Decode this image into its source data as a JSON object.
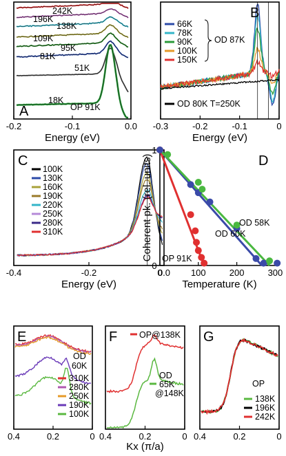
{
  "chart_data": [
    {
      "id": "A",
      "type": "line",
      "letter": "A",
      "xlabel": "Energy (eV)",
      "xlim": [
        -0.2,
        0.0
      ],
      "xticks": [
        "-0.2",
        "-0.1",
        "0.0"
      ],
      "annotation": "OP 91K",
      "series": [
        {
          "name": "242K",
          "color": "#d62728",
          "offset": 0.95,
          "peak": 0.03
        },
        {
          "name": "196K",
          "color": "#b05fb0",
          "offset": 0.87,
          "peak": 0.04
        },
        {
          "name": "138K",
          "color": "#33b5c8",
          "offset": 0.79,
          "peak": 0.05
        },
        {
          "name": "109K",
          "color": "#a8a23a",
          "offset": 0.7,
          "peak": 0.07
        },
        {
          "name": "95K",
          "color": "#2a8a2a",
          "offset": 0.62,
          "peak": 0.08
        },
        {
          "name": "81K",
          "color": "#2b4aa8",
          "offset": 0.53,
          "peak": 0.1
        },
        {
          "name": "51K",
          "color": "#555555",
          "offset": 0.37,
          "peak": 0.22
        },
        {
          "name": "18K",
          "color": "#2a9a3a",
          "offset": 0.12,
          "peak": 0.5
        }
      ]
    },
    {
      "id": "B",
      "type": "line",
      "letter": "B",
      "xlabel": "Energy (eV)",
      "xlim": [
        -0.3,
        0.03
      ],
      "xticks": [
        "-0.3",
        "-0.2",
        "-0.1",
        "0"
      ],
      "group_label": "OD 87K",
      "extra_label": "OD 80K T=250K",
      "series": [
        {
          "name": "66K",
          "color": "#2b4aa8"
        },
        {
          "name": "78K",
          "color": "#33b5c8"
        },
        {
          "name": "90K",
          "color": "#2a9a3a"
        },
        {
          "name": "100K",
          "color": "#e69a28"
        },
        {
          "name": "150K",
          "color": "#e03030"
        },
        {
          "name": "OD 80K T=250K",
          "color": "#000000"
        }
      ]
    },
    {
      "id": "C",
      "type": "line",
      "letter": "C",
      "xlabel": "Energy (eV)",
      "xlim": [
        -0.4,
        0.05
      ],
      "xticks": [
        "-0.4",
        "-0.2",
        "0.0"
      ],
      "series": [
        {
          "name": "100K",
          "color": "#000000",
          "peak": 1.0
        },
        {
          "name": "130K",
          "color": "#2b4aa8",
          "peak": 0.9
        },
        {
          "name": "160K",
          "color": "#a8a23a",
          "peak": 0.76
        },
        {
          "name": "190K",
          "color": "#9a7a28",
          "peak": 0.66
        },
        {
          "name": "220K",
          "color": "#33b5c8",
          "peak": 0.5
        },
        {
          "name": "250K",
          "color": "#b58ad8",
          "peak": 0.42
        },
        {
          "name": "280K",
          "color": "#3a2a88",
          "peak": 0.4
        },
        {
          "name": "310K",
          "color": "#e03030",
          "peak": 0.38
        }
      ]
    },
    {
      "id": "D",
      "type": "scatter",
      "letter": "D",
      "xlabel": "Temperature (K)",
      "ylabel": "Coherent pk. (rel. units)",
      "xlim": [
        0,
        310
      ],
      "ylim": [
        0,
        1
      ],
      "xticks": [
        "0",
        "100",
        "200",
        "300"
      ],
      "yticks": [
        "0",
        "1"
      ],
      "series": [
        {
          "name": "OP 91K",
          "color": "#e03030",
          "x": [
            0,
            80,
            92,
            95,
            100,
            108,
            115
          ],
          "y": [
            1.0,
            0.44,
            0.3,
            0.2,
            0.13,
            0.07,
            0.02
          ],
          "fit": [
            [
              0,
              1.0
            ],
            [
              115,
              0.0
            ]
          ]
        },
        {
          "name": "OD 60K",
          "color": "#3a4aa8",
          "x": [
            0,
            80,
            100,
            130,
            200,
            250,
            270,
            305
          ],
          "y": [
            1.0,
            0.7,
            0.63,
            0.55,
            0.32,
            0.06,
            0.02,
            0.02
          ],
          "fit": [
            [
              0,
              1.0
            ],
            [
              265,
              0.0
            ]
          ]
        },
        {
          "name": "OD 58K",
          "color": "#4ab840",
          "x": [
            20,
            100,
            110,
            200,
            285
          ],
          "y": [
            0.96,
            0.72,
            0.66,
            0.35,
            0.04
          ],
          "fit": [
            [
              0,
              1.0
            ],
            [
              285,
              0.0
            ]
          ]
        }
      ]
    },
    {
      "id": "E",
      "type": "line",
      "letter": "E",
      "xlabel": "",
      "xlim": [
        0.4,
        0.0
      ],
      "xticks": [
        "0.4",
        "0.2",
        "0"
      ],
      "group_label": "OD 60K",
      "series": [
        {
          "name": "310K",
          "color": "#e03030"
        },
        {
          "name": "280K",
          "color": "#b058b0"
        },
        {
          "name": "250K",
          "color": "#e69a28"
        },
        {
          "name": "190K",
          "color": "#6a3ab8"
        },
        {
          "name": "100K",
          "color": "#5ab840"
        }
      ]
    },
    {
      "id": "F",
      "type": "line",
      "letter": "F",
      "xlabel": "Kx (π/a)",
      "xlim": [
        0.4,
        0.0
      ],
      "xticks": [
        "0.4",
        "0.2",
        "0"
      ],
      "top_label": "OP@138K",
      "bottom_label_1": "OD",
      "bottom_label_2": "65K",
      "bottom_label_3": "@148K",
      "series": [
        {
          "name": "OP@138K",
          "color": "#e03030"
        },
        {
          "name": "OD 65K @148K",
          "color": "#5ab840"
        }
      ]
    },
    {
      "id": "G",
      "type": "line",
      "letter": "G",
      "xlabel": "",
      "xlim": [
        0.4,
        0.0
      ],
      "xticks": [
        "0.4",
        "0.2",
        "0"
      ],
      "group_label": "OP",
      "series": [
        {
          "name": "138K",
          "color": "#5ab840"
        },
        {
          "name": "196K",
          "color": "#000000"
        },
        {
          "name": "242K",
          "color": "#e03030"
        }
      ]
    }
  ]
}
